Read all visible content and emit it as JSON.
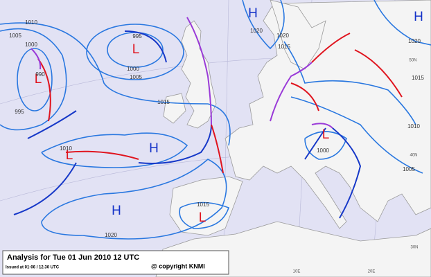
{
  "caption": {
    "title": "Analysis for Tue 01 Jun 2010 12 UTC",
    "issued": "Issued at 01-06 / 12.30 UTC",
    "copyright": "@ copyright KNMI"
  },
  "pressure_centres": [
    "H",
    "H",
    "L",
    "L",
    "H",
    "L",
    "H",
    "L",
    "L"
  ],
  "isobar_labels": [
    1010,
    1005,
    1000,
    995,
    1000,
    1005,
    990,
    995,
    1015,
    1010,
    1020,
    1020,
    1015,
    1015,
    1010,
    1000,
    1005,
    1015,
    1020,
    1020
  ],
  "grid_labels": [
    "50N",
    "40N",
    "30N",
    "10E",
    "20E"
  ]
}
